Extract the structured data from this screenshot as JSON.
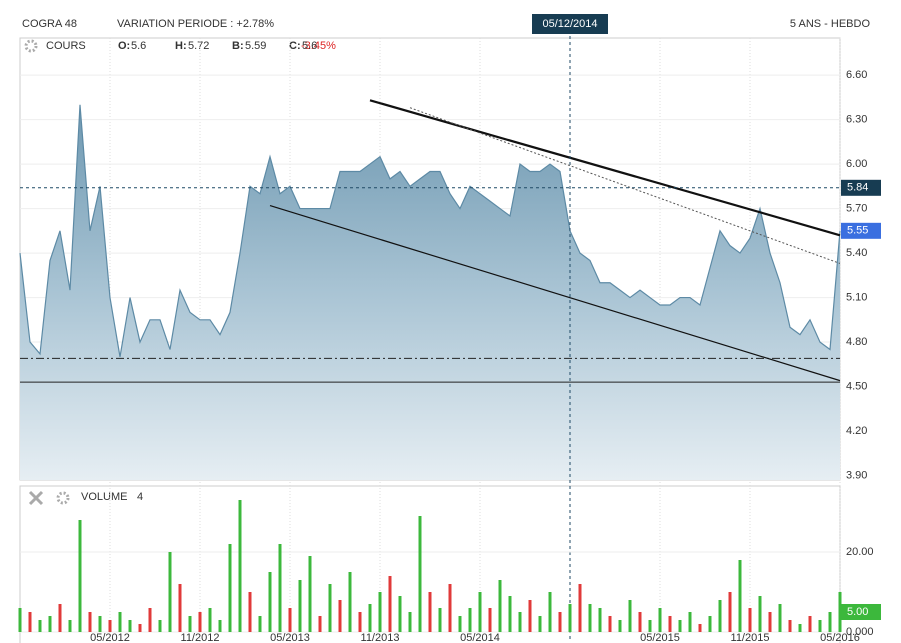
{
  "chart_data": {
    "type": "area",
    "title": "COGRA 48",
    "subtitle": "VARIATION PERIODE : +2.78%",
    "period": "5 ANS - HEBDO",
    "price_label": "COURS",
    "ohlc": [
      {
        "label": "O:",
        "value": "5.6"
      },
      {
        "label": "H:",
        "value": "5.72"
      },
      {
        "label": "B:",
        "value": "5.59"
      },
      {
        "label": "C:",
        "value": "5.6"
      }
    ],
    "change": "-3.45%",
    "volume_label": "VOLUME",
    "volume_period": "4",
    "categories": [
      null,
      null,
      null,
      null,
      null,
      null,
      null,
      null,
      null,
      "05/2012",
      null,
      null,
      null,
      null,
      null,
      null,
      null,
      null,
      "11/2012",
      null,
      null,
      null,
      null,
      null,
      null,
      null,
      null,
      "05/2013",
      null,
      null,
      null,
      null,
      null,
      null,
      null,
      null,
      "11/2013",
      null,
      null,
      null,
      null,
      null,
      null,
      null,
      null,
      null,
      "05/2014",
      null,
      null,
      null,
      null,
      null,
      null,
      null,
      null,
      null,
      null,
      null,
      null,
      null,
      null,
      null,
      null,
      null,
      "05/2015",
      null,
      null,
      null,
      null,
      null,
      null,
      null,
      null,
      "11/2015",
      null,
      null,
      null,
      null,
      null,
      null,
      null,
      null,
      "05/2016"
    ],
    "values": [
      5.4,
      4.8,
      4.72,
      5.35,
      5.55,
      5.15,
      6.4,
      5.55,
      5.85,
      5.1,
      4.7,
      5.1,
      4.8,
      4.95,
      4.95,
      4.75,
      5.15,
      5.0,
      4.95,
      4.95,
      4.85,
      5.0,
      5.4,
      5.85,
      5.8,
      6.05,
      5.8,
      5.85,
      5.7,
      5.7,
      5.7,
      5.7,
      5.95,
      5.95,
      5.95,
      6.0,
      6.05,
      5.9,
      5.95,
      5.85,
      5.9,
      5.95,
      5.95,
      5.8,
      5.7,
      5.85,
      5.8,
      5.75,
      5.7,
      5.65,
      6.0,
      5.95,
      5.95,
      6.0,
      5.95,
      5.55,
      5.4,
      5.35,
      5.2,
      5.2,
      5.15,
      5.1,
      5.15,
      5.1,
      5.05,
      5.05,
      5.1,
      5.1,
      5.05,
      5.3,
      5.55,
      5.45,
      5.4,
      5.5,
      5.7,
      5.4,
      5.2,
      4.9,
      4.85,
      4.95,
      4.8,
      4.75,
      5.55
    ],
    "color": "#5d8aa5",
    "ylim": [
      3.87,
      6.85
    ],
    "yticks": [
      {
        "value": 3.9,
        "label": "3.90"
      },
      {
        "value": 4.2,
        "label": "4.20"
      },
      {
        "value": 4.5,
        "label": "4.50"
      },
      {
        "value": 4.8,
        "label": "4.80"
      },
      {
        "value": 5.1,
        "label": "5.10"
      },
      {
        "value": 5.4,
        "label": "5.40"
      },
      {
        "value": 5.7,
        "label": "5.70"
      },
      {
        "value": 6.0,
        "label": "6.00"
      },
      {
        "value": 6.3,
        "label": "6.30"
      },
      {
        "value": 6.6,
        "label": "6.60"
      }
    ],
    "crosshair": {
      "index": 55,
      "label": "05/12/2014",
      "value": 5.84,
      "value_label": "5.84"
    },
    "last": {
      "value": 5.55,
      "label": "5.55"
    },
    "trendlines": [
      {
        "from": [
          35,
          6.43
        ],
        "to": [
          82,
          5.52
        ],
        "style": "thick"
      },
      {
        "from": [
          25,
          5.72
        ],
        "to": [
          82,
          4.54
        ],
        "style": "thin"
      },
      {
        "from": [
          39,
          6.38
        ],
        "to": [
          82,
          5.33
        ],
        "style": "dotted"
      }
    ],
    "hlines": [
      {
        "value": 4.69,
        "style": "dashdot"
      },
      {
        "value": 4.53,
        "style": "solid"
      }
    ],
    "volume": {
      "ylim": [
        0,
        36.5
      ],
      "yticks": [
        {
          "value": 0,
          "label": "0.000"
        },
        {
          "value": 20,
          "label": "20.00"
        }
      ],
      "last": {
        "value": 5,
        "label": "5.00"
      },
      "series": [
        {
          "color": "#3cb83c",
          "values": [
            6,
            null,
            3,
            4,
            null,
            3,
            28,
            null,
            4,
            null,
            5,
            3,
            null,
            null,
            3,
            20,
            null,
            4,
            null,
            6,
            3,
            22,
            33,
            null,
            4,
            15,
            22,
            null,
            13,
            19,
            null,
            12,
            null,
            15,
            null,
            7,
            10,
            null,
            9,
            5,
            29,
            null,
            6,
            null,
            4,
            6,
            10,
            null,
            13,
            9,
            5,
            null,
            4,
            10,
            null,
            7,
            null,
            7,
            6,
            null,
            3,
            8,
            null,
            3,
            6,
            null,
            3,
            5,
            null,
            4,
            8,
            null,
            18,
            null,
            9,
            null,
            7,
            null,
            2,
            null,
            3,
            5,
            10
          ]
        },
        {
          "color": "#e03a3a",
          "values": [
            null,
            5,
            null,
            null,
            7,
            null,
            null,
            5,
            null,
            3,
            null,
            null,
            2,
            6,
            null,
            null,
            12,
            null,
            5,
            null,
            null,
            null,
            null,
            10,
            null,
            null,
            null,
            6,
            null,
            null,
            4,
            null,
            8,
            null,
            5,
            null,
            null,
            14,
            null,
            null,
            null,
            10,
            null,
            12,
            null,
            null,
            null,
            6,
            null,
            null,
            null,
            8,
            null,
            null,
            5,
            null,
            12,
            null,
            null,
            4,
            null,
            null,
            5,
            null,
            null,
            4,
            null,
            null,
            2,
            null,
            null,
            10,
            null,
            6,
            null,
            5,
            null,
            3,
            null,
            4,
            null,
            null,
            null
          ]
        }
      ]
    }
  }
}
